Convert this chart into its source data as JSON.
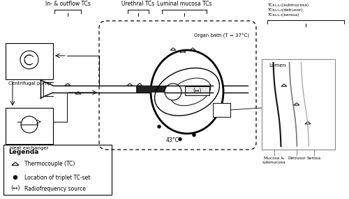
{
  "bg_color": "#ffffff",
  "line_color": "#000000",
  "labels": {
    "in_outflow": "In- & outflow TCs",
    "urethral": "Urethral TCs",
    "luminal": "Luminal mucosa TCs",
    "organ_bath": "Organ bath (T = 37°C)",
    "centrifugal": "Centrifugal pump",
    "heat_exchanger": "Heat exchanger",
    "temp_43": "43°C",
    "lumen": "Lumen",
    "mucosa": "Mucosa &\nsubmucosa",
    "detrusor": "Detrusor",
    "serosa": "Serosa",
    "tc141": "TCs₁,₄,₁(submucosa)",
    "tc251": "TCs₂,₅,₂(detrusor)",
    "tc361": "TCs₃,₆,₃(serosa)",
    "legenda_title": "Legenda",
    "legenda_tc": "Thermocouple (TC)",
    "legenda_triplet": "Location of triplet TC-set",
    "legenda_rf": "Radiofrequency source"
  }
}
